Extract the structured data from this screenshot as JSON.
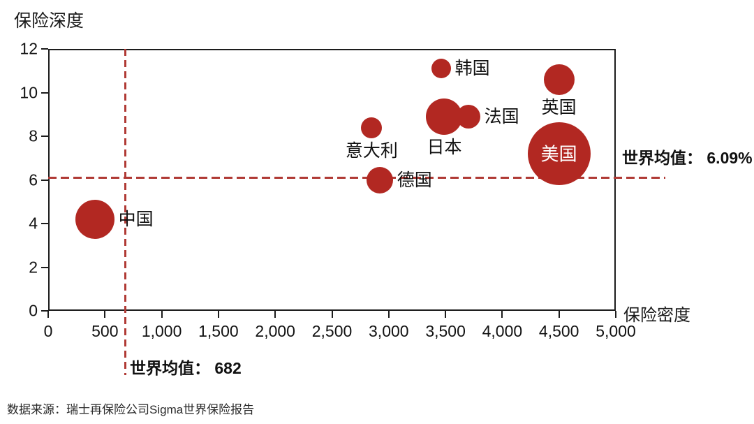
{
  "source": {
    "text": "数据来源：瑞士再保险公司Sigma世界保险报告"
  },
  "colors": {
    "bubble": "#B22822",
    "dashed_line": "#B03A35",
    "axis": "#1C1C1C",
    "inside_label": "#FFFFFF"
  },
  "chart_data": {
    "type": "scatter",
    "title": "",
    "xlabel": "保险密度",
    "ylabel": "保险深度",
    "xlim": [
      0,
      5000
    ],
    "ylim": [
      0,
      12
    ],
    "grid": false,
    "legend": false,
    "x_ticks": [
      {
        "value": 0,
        "label": "0"
      },
      {
        "value": 500,
        "label": "500"
      },
      {
        "value": 1000,
        "label": "1,000"
      },
      {
        "value": 1500,
        "label": "1,500"
      },
      {
        "value": 2000,
        "label": "2,000"
      },
      {
        "value": 2500,
        "label": "2,500"
      },
      {
        "value": 3000,
        "label": "3,000"
      },
      {
        "value": 3500,
        "label": "3,500"
      },
      {
        "value": 4000,
        "label": "4,000"
      },
      {
        "value": 4500,
        "label": "4,500"
      },
      {
        "value": 5000,
        "label": "5,000"
      }
    ],
    "y_ticks": [
      {
        "value": 0,
        "label": "0"
      },
      {
        "value": 2,
        "label": "2"
      },
      {
        "value": 4,
        "label": "4"
      },
      {
        "value": 6,
        "label": "6"
      },
      {
        "value": 8,
        "label": "8"
      },
      {
        "value": 10,
        "label": "10"
      },
      {
        "value": 12,
        "label": "12"
      }
    ],
    "points": [
      {
        "id": "china",
        "name": "中国",
        "x": 410,
        "y": 4.2,
        "r": 28,
        "label_pos": "right"
      },
      {
        "id": "italy",
        "name": "意大利",
        "x": 2850,
        "y": 8.4,
        "r": 15,
        "label_pos": "below"
      },
      {
        "id": "germany",
        "name": "德国",
        "x": 2920,
        "y": 6.0,
        "r": 19,
        "label_pos": "right"
      },
      {
        "id": "japan",
        "name": "日本",
        "x": 3490,
        "y": 8.9,
        "r": 26,
        "label_pos": "below"
      },
      {
        "id": "south-korea",
        "name": "韩国",
        "x": 3460,
        "y": 11.1,
        "r": 14,
        "label_pos": "right"
      },
      {
        "id": "france",
        "name": "法国",
        "x": 3700,
        "y": 8.9,
        "r": 17,
        "label_pos": "right"
      },
      {
        "id": "uk",
        "name": "英国",
        "x": 4500,
        "y": 10.6,
        "r": 22,
        "label_pos": "below"
      },
      {
        "id": "usa",
        "name": "美国",
        "x": 4500,
        "y": 7.2,
        "r": 45,
        "label_pos": "inside"
      }
    ],
    "annotations": {
      "world_avg_density": {
        "value": 682,
        "label": "世界均值： 682"
      },
      "world_avg_depth": {
        "value": 6.09,
        "label": "世界均值： 6.09%"
      }
    }
  }
}
